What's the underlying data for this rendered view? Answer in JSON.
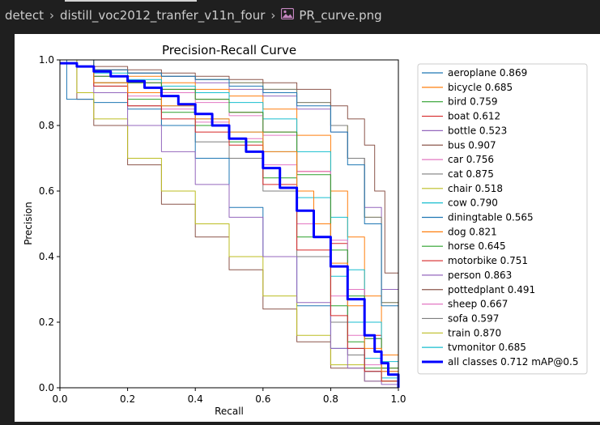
{
  "breadcrumb": {
    "items": [
      "detect",
      "distill_voc2012_tranfer_v11n_four"
    ],
    "file": "PR_curve.png",
    "file_icon": "image-file-icon"
  },
  "chart_data": {
    "type": "line",
    "title": "Precision-Recall Curve",
    "xlabel": "Recall",
    "ylabel": "Precision",
    "xlim": [
      0,
      1
    ],
    "ylim": [
      0,
      1
    ],
    "xticks": [
      "0.0",
      "0.2",
      "0.4",
      "0.6",
      "0.8",
      "1.0"
    ],
    "yticks": [
      "0.0",
      "0.2",
      "0.4",
      "0.6",
      "0.8",
      "1.0"
    ],
    "grid": false,
    "legend_position": "outside-right",
    "series": [
      {
        "name": "aeroplane",
        "ap": "0.869",
        "color": "#1f77b4",
        "x": [
          0,
          0.1,
          0.2,
          0.3,
          0.4,
          0.5,
          0.6,
          0.7,
          0.8,
          0.85,
          0.9,
          0.95,
          1.0
        ],
        "y": [
          1,
          0.97,
          0.96,
          0.95,
          0.94,
          0.92,
          0.9,
          0.86,
          0.78,
          0.68,
          0.5,
          0.25,
          0
        ]
      },
      {
        "name": "bicycle",
        "ap": "0.685",
        "color": "#ff7f0e",
        "x": [
          0,
          0.1,
          0.2,
          0.3,
          0.4,
          0.5,
          0.6,
          0.7,
          0.75,
          0.8,
          0.85,
          0.9,
          0.95,
          1.0
        ],
        "y": [
          1,
          0.93,
          0.9,
          0.86,
          0.82,
          0.78,
          0.72,
          0.6,
          0.5,
          0.38,
          0.25,
          0.12,
          0.05,
          0
        ]
      },
      {
        "name": "bird",
        "ap": "0.759",
        "color": "#2ca02c",
        "x": [
          0,
          0.1,
          0.2,
          0.3,
          0.4,
          0.5,
          0.6,
          0.7,
          0.8,
          0.85,
          0.9,
          0.95,
          1.0
        ],
        "y": [
          1,
          0.95,
          0.93,
          0.91,
          0.88,
          0.84,
          0.78,
          0.65,
          0.42,
          0.28,
          0.15,
          0.06,
          0
        ]
      },
      {
        "name": "boat",
        "ap": "0.612",
        "color": "#d62728",
        "x": [
          0,
          0.1,
          0.2,
          0.3,
          0.4,
          0.5,
          0.6,
          0.7,
          0.8,
          0.85,
          0.9,
          0.95,
          1.0
        ],
        "y": [
          1,
          0.92,
          0.86,
          0.82,
          0.78,
          0.74,
          0.62,
          0.42,
          0.22,
          0.12,
          0.05,
          0.02,
          0
        ]
      },
      {
        "name": "bottle",
        "ap": "0.523",
        "color": "#9467bd",
        "x": [
          0,
          0.1,
          0.2,
          0.3,
          0.4,
          0.5,
          0.6,
          0.7,
          0.8,
          0.85,
          0.9,
          0.95,
          1.0
        ],
        "y": [
          1,
          0.9,
          0.8,
          0.72,
          0.62,
          0.52,
          0.4,
          0.26,
          0.12,
          0.06,
          0.02,
          0.01,
          0
        ]
      },
      {
        "name": "bus",
        "ap": "0.907",
        "color": "#8c564b",
        "x": [
          0,
          0.1,
          0.2,
          0.3,
          0.4,
          0.5,
          0.6,
          0.7,
          0.8,
          0.85,
          0.9,
          0.93,
          0.96,
          1.0
        ],
        "y": [
          1,
          0.98,
          0.97,
          0.96,
          0.95,
          0.94,
          0.93,
          0.91,
          0.86,
          0.82,
          0.74,
          0.6,
          0.35,
          0
        ]
      },
      {
        "name": "car",
        "ap": "0.756",
        "color": "#e377c2",
        "x": [
          0,
          0.1,
          0.2,
          0.3,
          0.4,
          0.5,
          0.6,
          0.7,
          0.8,
          0.85,
          0.9,
          0.95,
          1.0
        ],
        "y": [
          1,
          0.95,
          0.93,
          0.9,
          0.87,
          0.83,
          0.77,
          0.66,
          0.45,
          0.3,
          0.15,
          0.05,
          0
        ]
      },
      {
        "name": "cat",
        "ap": "0.875",
        "color": "#7f7f7f",
        "x": [
          0,
          0.1,
          0.2,
          0.3,
          0.4,
          0.5,
          0.6,
          0.7,
          0.8,
          0.85,
          0.9,
          0.95,
          1.0
        ],
        "y": [
          1,
          0.97,
          0.96,
          0.95,
          0.94,
          0.93,
          0.91,
          0.87,
          0.8,
          0.7,
          0.52,
          0.26,
          0
        ]
      },
      {
        "name": "chair",
        "ap": "0.518",
        "color": "#bcbd22",
        "x": [
          0,
          0.05,
          0.1,
          0.2,
          0.3,
          0.4,
          0.5,
          0.6,
          0.7,
          0.8,
          0.9,
          1.0
        ],
        "y": [
          1,
          0.9,
          0.82,
          0.7,
          0.6,
          0.5,
          0.4,
          0.28,
          0.16,
          0.07,
          0.02,
          0
        ]
      },
      {
        "name": "cow",
        "ap": "0.790",
        "color": "#17becf",
        "x": [
          0,
          0.1,
          0.2,
          0.3,
          0.4,
          0.5,
          0.6,
          0.7,
          0.8,
          0.85,
          0.9,
          0.95,
          1.0
        ],
        "y": [
          1,
          0.96,
          0.94,
          0.92,
          0.9,
          0.87,
          0.82,
          0.72,
          0.52,
          0.36,
          0.2,
          0.08,
          0
        ]
      },
      {
        "name": "diningtable",
        "ap": "0.565",
        "color": "#1f77b4",
        "x": [
          0,
          0.02,
          0.1,
          0.2,
          0.3,
          0.4,
          0.5,
          0.6,
          0.7,
          0.8,
          0.9,
          1.0
        ],
        "y": [
          1,
          0.88,
          0.87,
          0.85,
          0.8,
          0.7,
          0.55,
          0.4,
          0.25,
          0.12,
          0.05,
          0
        ]
      },
      {
        "name": "dog",
        "ap": "0.821",
        "color": "#ff7f0e",
        "x": [
          0,
          0.1,
          0.2,
          0.3,
          0.4,
          0.5,
          0.6,
          0.7,
          0.8,
          0.85,
          0.9,
          0.95,
          1.0
        ],
        "y": [
          1,
          0.97,
          0.95,
          0.93,
          0.91,
          0.89,
          0.85,
          0.77,
          0.6,
          0.46,
          0.28,
          0.1,
          0
        ]
      },
      {
        "name": "horse",
        "ap": "0.645",
        "color": "#2ca02c",
        "x": [
          0,
          0.1,
          0.2,
          0.3,
          0.4,
          0.5,
          0.6,
          0.7,
          0.8,
          0.85,
          0.9,
          0.95,
          1.0
        ],
        "y": [
          1,
          0.93,
          0.88,
          0.84,
          0.8,
          0.75,
          0.64,
          0.46,
          0.25,
          0.14,
          0.06,
          0.02,
          0
        ]
      },
      {
        "name": "motorbike",
        "ap": "0.751",
        "color": "#d62728",
        "x": [
          0,
          0.1,
          0.2,
          0.3,
          0.4,
          0.5,
          0.6,
          0.7,
          0.8,
          0.85,
          0.9,
          0.95,
          1.0
        ],
        "y": [
          1,
          0.95,
          0.93,
          0.91,
          0.88,
          0.84,
          0.78,
          0.66,
          0.44,
          0.3,
          0.16,
          0.06,
          0
        ]
      },
      {
        "name": "person",
        "ap": "0.863",
        "color": "#9467bd",
        "x": [
          0,
          0.1,
          0.2,
          0.3,
          0.4,
          0.5,
          0.6,
          0.7,
          0.8,
          0.85,
          0.9,
          0.95,
          1.0
        ],
        "y": [
          1,
          0.97,
          0.96,
          0.95,
          0.93,
          0.91,
          0.89,
          0.85,
          0.78,
          0.7,
          0.55,
          0.3,
          0
        ]
      },
      {
        "name": "pottedplant",
        "ap": "0.491",
        "color": "#8c564b",
        "x": [
          0,
          0.05,
          0.1,
          0.2,
          0.3,
          0.4,
          0.5,
          0.6,
          0.7,
          0.8,
          0.9,
          1.0
        ],
        "y": [
          1,
          0.88,
          0.8,
          0.68,
          0.56,
          0.46,
          0.36,
          0.24,
          0.14,
          0.06,
          0.02,
          0
        ]
      },
      {
        "name": "sheep",
        "ap": "0.667",
        "color": "#e377c2",
        "x": [
          0,
          0.1,
          0.2,
          0.3,
          0.4,
          0.5,
          0.6,
          0.7,
          0.8,
          0.85,
          0.9,
          0.95,
          1.0
        ],
        "y": [
          1,
          0.93,
          0.89,
          0.85,
          0.81,
          0.76,
          0.68,
          0.5,
          0.28,
          0.16,
          0.07,
          0.02,
          0
        ]
      },
      {
        "name": "sofa",
        "ap": "0.597",
        "color": "#7f7f7f",
        "x": [
          0,
          0.1,
          0.2,
          0.3,
          0.4,
          0.5,
          0.6,
          0.7,
          0.8,
          0.85,
          0.9,
          0.95,
          1.0
        ],
        "y": [
          1,
          0.92,
          0.86,
          0.8,
          0.75,
          0.7,
          0.6,
          0.4,
          0.2,
          0.1,
          0.05,
          0.02,
          0
        ]
      },
      {
        "name": "train",
        "ap": "0.870",
        "color": "#bcbd22",
        "x": [
          0,
          0.1,
          0.2,
          0.3,
          0.4,
          0.5,
          0.6,
          0.7,
          0.8,
          0.85,
          0.9,
          0.95,
          1.0
        ],
        "y": [
          1,
          0.97,
          0.96,
          0.95,
          0.94,
          0.93,
          0.91,
          0.87,
          0.8,
          0.7,
          0.52,
          0.26,
          0
        ]
      },
      {
        "name": "tvmonitor",
        "ap": "0.685",
        "color": "#17becf",
        "x": [
          0,
          0.1,
          0.2,
          0.3,
          0.4,
          0.5,
          0.6,
          0.7,
          0.8,
          0.85,
          0.9,
          0.95,
          1.0
        ],
        "y": [
          1,
          0.93,
          0.9,
          0.86,
          0.82,
          0.78,
          0.72,
          0.58,
          0.34,
          0.2,
          0.09,
          0.03,
          0
        ]
      },
      {
        "name": "all classes",
        "ap": "0.712 mAP@0.5",
        "color": "#0000ff",
        "bold": true,
        "x": [
          0,
          0.05,
          0.1,
          0.15,
          0.2,
          0.25,
          0.3,
          0.35,
          0.4,
          0.45,
          0.5,
          0.55,
          0.6,
          0.65,
          0.7,
          0.75,
          0.8,
          0.85,
          0.9,
          0.93,
          0.95,
          0.97,
          1.0
        ],
        "y": [
          0.99,
          0.98,
          0.965,
          0.95,
          0.935,
          0.915,
          0.89,
          0.865,
          0.835,
          0.8,
          0.76,
          0.72,
          0.67,
          0.61,
          0.54,
          0.46,
          0.37,
          0.27,
          0.16,
          0.11,
          0.075,
          0.04,
          0
        ]
      }
    ]
  }
}
